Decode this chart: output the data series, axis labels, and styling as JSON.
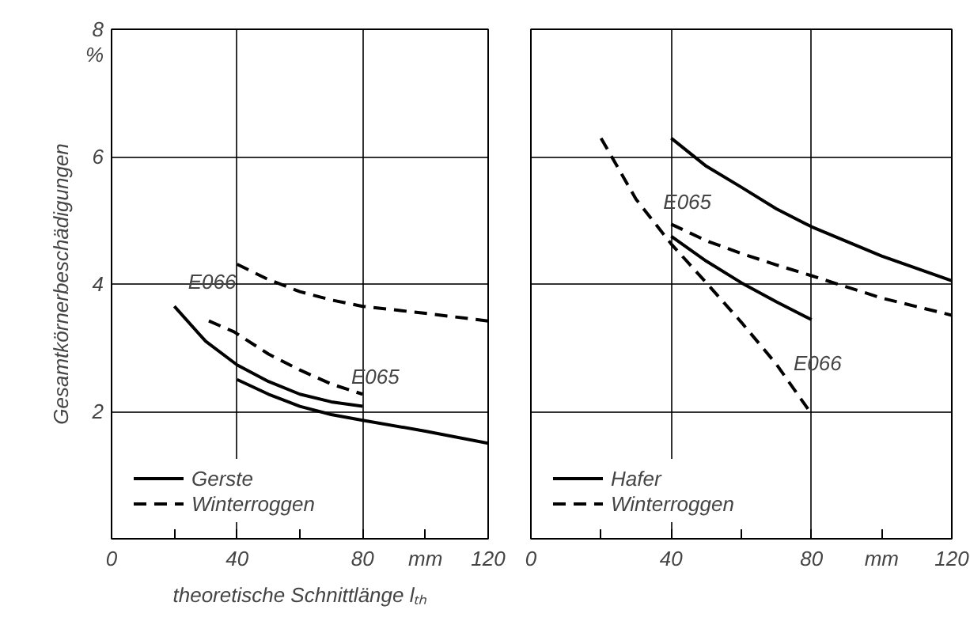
{
  "chart_data": [
    {
      "type": "line",
      "ylabel": "Gesamtkörnerbeschädigungen",
      "xlabel": "theoretische Schnittlänge lₜₕ",
      "xlim": [
        0,
        120
      ],
      "ylim": [
        0,
        8
      ],
      "xticks": [
        0,
        {
          "value": 20,
          "label": null
        },
        40,
        {
          "value": 60,
          "label": null
        },
        80,
        {
          "value": 100,
          "label": "mm"
        },
        120
      ],
      "yticks": [
        2,
        4,
        6,
        {
          "value": 7.6,
          "label": "%"
        },
        8
      ],
      "grid": true,
      "legend": "bottom left",
      "annotations": [
        {
          "text": "E066",
          "x": 30,
          "y": 3.1
        },
        {
          "text": "E065",
          "x": 80,
          "y": 1.86
        }
      ],
      "series": [
        {
          "name": "Gerste",
          "color": "#000000",
          "line_style": "solid",
          "x": [
            20,
            30,
            40,
            50,
            60,
            70,
            80
          ],
          "values": [
            3.65,
            3.1,
            2.73,
            2.47,
            2.27,
            2.15,
            2.08
          ]
        },
        {
          "name": "Winterroggen",
          "color": "#000000",
          "line_style": "dashed",
          "x": [
            31,
            39,
            50,
            60,
            70,
            80
          ],
          "values": [
            3.42,
            3.25,
            2.9,
            2.65,
            2.43,
            2.27
          ]
        },
        {
          "color": "#000000",
          "line_style": "solid",
          "x": [
            40,
            50,
            60,
            70,
            80,
            100,
            120
          ],
          "values": [
            2.5,
            2.27,
            2.08,
            1.95,
            1.86,
            1.69,
            1.5
          ]
        },
        {
          "color": "#000000",
          "line_style": "dashed",
          "x": [
            40,
            50,
            60,
            70,
            80,
            100,
            120
          ],
          "values": [
            4.31,
            4.07,
            3.88,
            3.75,
            3.65,
            3.54,
            3.42
          ]
        }
      ]
    },
    {
      "type": "line",
      "xlim": [
        0,
        120
      ],
      "ylim": [
        0,
        8
      ],
      "tick_labels": "x",
      "xticks": [
        0,
        {
          "value": 20,
          "label": null
        },
        40,
        {
          "value": 60,
          "label": null
        },
        80,
        {
          "value": 100,
          "label": "mm"
        },
        120
      ],
      "yticks": [
        2,
        4,
        6,
        8
      ],
      "grid": true,
      "legend": "bottom left",
      "annotations": [
        {
          "text": "E065",
          "x": 50,
          "y": 5.85
        },
        {
          "text": "E066",
          "x": 70,
          "y": 3.72
        }
      ],
      "series": [
        {
          "name": "Hafer",
          "color": "#000000",
          "line_style": "solid",
          "x": [
            40,
            50,
            60,
            70,
            80,
            100,
            120
          ],
          "values": [
            6.29,
            5.85,
            5.52,
            5.18,
            4.9,
            4.44,
            4.05
          ]
        },
        {
          "name": "Winterroggen",
          "color": "#000000",
          "line_style": "dashed",
          "x": [
            40,
            50,
            60,
            70,
            80,
            100,
            120
          ],
          "values": [
            4.94,
            4.68,
            4.48,
            4.3,
            4.13,
            3.78,
            3.51
          ]
        },
        {
          "color": "#000000",
          "line_style": "solid",
          "x": [
            40,
            50,
            60,
            70,
            80
          ],
          "values": [
            4.75,
            4.36,
            4.02,
            3.72,
            3.44
          ]
        },
        {
          "color": "#000000",
          "line_style": "dashed",
          "x": [
            20,
            30,
            40,
            50,
            60,
            70,
            80
          ],
          "values": [
            6.29,
            5.33,
            4.63,
            4.02,
            3.4,
            2.74,
            1.96
          ]
        }
      ]
    }
  ]
}
